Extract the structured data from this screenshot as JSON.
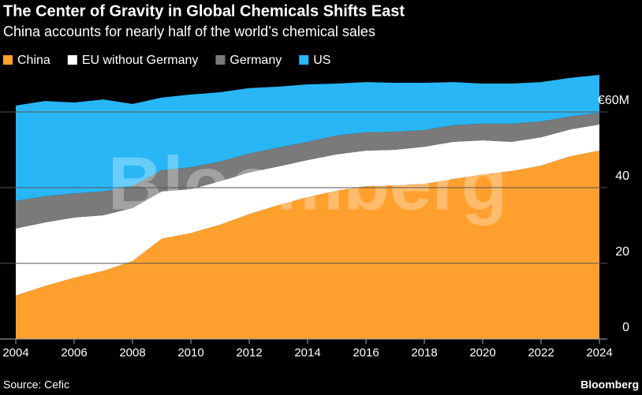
{
  "chart_data": {
    "type": "stacked_area",
    "title": "The Center of Gravity in Global Chemicals Shifts East",
    "subtitle": "China accounts for nearly half of the world’s chemical sales",
    "x": [
      2004,
      2005,
      2006,
      2007,
      2008,
      2009,
      2010,
      2011,
      2012,
      2013,
      2014,
      2015,
      2016,
      2017,
      2018,
      2019,
      2020,
      2021,
      2022,
      2023,
      2024
    ],
    "series": [
      {
        "name": "China",
        "color": "#ffa02e",
        "values": [
          11.5,
          14,
          16.2,
          18,
          20.6,
          26.5,
          28,
          30.2,
          33,
          35.4,
          37.5,
          39.2,
          40.4,
          40.6,
          41,
          42.3,
          43.5,
          44.4,
          45.8,
          48.3,
          49.8
        ]
      },
      {
        "name": "EU without Germany",
        "color": "#ffffff",
        "values": [
          17.7,
          16.8,
          15.9,
          14.7,
          14,
          12.5,
          11.6,
          11.5,
          11,
          10.2,
          9.8,
          9.6,
          9.4,
          9.4,
          9.8,
          9.8,
          9,
          7.7,
          7.5,
          7.1,
          6.9
        ]
      },
      {
        "name": "Germany",
        "color": "#7a7a7a",
        "values": [
          7.3,
          6.9,
          6.4,
          6.3,
          5.8,
          5.6,
          5.8,
          5.2,
          5,
          5,
          4.8,
          5,
          4.8,
          4.8,
          4.4,
          4.4,
          4.4,
          4.8,
          4.2,
          3.4,
          3.1
        ]
      },
      {
        "name": "US",
        "color": "#29b6f6",
        "values": [
          25.2,
          25.2,
          24,
          24.3,
          21.7,
          19.2,
          19.2,
          18.3,
          17.3,
          16.1,
          15.2,
          13.7,
          13.3,
          12.9,
          12.5,
          11.4,
          10.6,
          10.6,
          10.4,
          10.2,
          10
        ]
      }
    ],
    "xlim": [
      2004,
      2024
    ],
    "xticks": [
      2004,
      2006,
      2008,
      2010,
      2012,
      2014,
      2016,
      2018,
      2020,
      2022,
      2024
    ],
    "ylim": [
      0,
      70
    ],
    "yticks": [
      0,
      20,
      40,
      {
        "value": 60,
        "label": "€60M"
      }
    ],
    "grid": true,
    "source": "Source: Cefic",
    "brand": "Bloomberg",
    "watermark": "Bloomberg"
  }
}
